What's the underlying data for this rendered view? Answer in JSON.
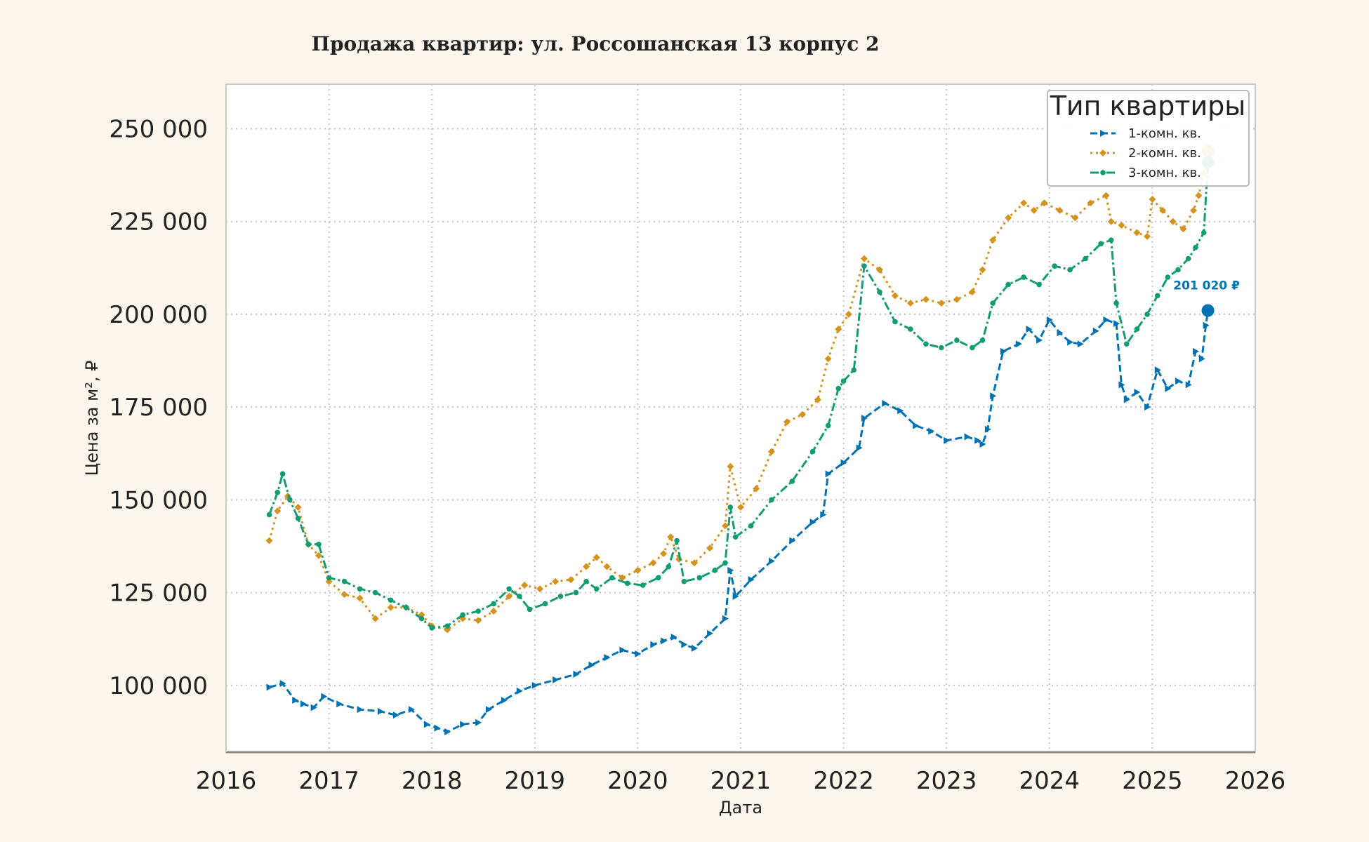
{
  "chart_data": {
    "type": "line",
    "title": "Продажа квартир: ул. Россошанская 13 корпус 2",
    "xlabel": "Дата",
    "ylabel": "Цена за м², ₽",
    "xlim": [
      2016.0,
      2026.0
    ],
    "ylim": [
      82000,
      262000
    ],
    "xticks": [
      2016,
      2017,
      2018,
      2019,
      2020,
      2021,
      2022,
      2023,
      2024,
      2025,
      2026
    ],
    "xtick_labels": [
      "2016",
      "2017",
      "2018",
      "2019",
      "2020",
      "2021",
      "2022",
      "2023",
      "2024",
      "2025",
      "2026"
    ],
    "yticks": [
      100000,
      125000,
      150000,
      175000,
      200000,
      225000,
      250000
    ],
    "ytick_labels": [
      "100 000",
      "125 000",
      "150 000",
      "175 000",
      "200 000",
      "225 000",
      "250 000"
    ],
    "grid": true,
    "legend": {
      "title": "Тип квартиры",
      "placement": "top-right"
    },
    "annotation": {
      "text": "201 020 ₽",
      "x": 2025.54,
      "y": 201020,
      "series": "1-комн. кв."
    },
    "colors": {
      "1-комн. кв.": "#0072b2",
      "2-комн. кв.": "#d4931f",
      "3-комн. кв.": "#119c72"
    },
    "series": [
      {
        "name": "1-комн. кв.",
        "line_style": "dashed",
        "marker": "triangle-right",
        "x": [
          2016.42,
          2016.55,
          2016.67,
          2016.75,
          2016.85,
          2016.95,
          2017.1,
          2017.3,
          2017.5,
          2017.65,
          2017.8,
          2017.95,
          2018.05,
          2018.15,
          2018.3,
          2018.45,
          2018.55,
          2018.7,
          2018.85,
          2019.0,
          2019.2,
          2019.4,
          2019.55,
          2019.7,
          2019.85,
          2020.0,
          2020.15,
          2020.25,
          2020.35,
          2020.45,
          2020.55,
          2020.7,
          2020.85,
          2020.9,
          2020.95,
          2021.1,
          2021.3,
          2021.5,
          2021.7,
          2021.8,
          2021.85,
          2022.0,
          2022.15,
          2022.2,
          2022.4,
          2022.55,
          2022.7,
          2022.85,
          2023.0,
          2023.2,
          2023.3,
          2023.35,
          2023.4,
          2023.45,
          2023.55,
          2023.7,
          2023.8,
          2023.9,
          2024.0,
          2024.1,
          2024.2,
          2024.3,
          2024.45,
          2024.55,
          2024.65,
          2024.7,
          2024.75,
          2024.85,
          2024.95,
          2025.05,
          2025.15,
          2025.25,
          2025.35,
          2025.42,
          2025.48,
          2025.52,
          2025.54
        ],
        "y": [
          99500,
          100500,
          96000,
          95000,
          94000,
          97000,
          95000,
          93500,
          93000,
          92000,
          93500,
          89500,
          88500,
          87500,
          89500,
          90000,
          93500,
          96000,
          98500,
          100000,
          101500,
          103000,
          105500,
          107500,
          109500,
          108500,
          111000,
          112000,
          113000,
          111000,
          110000,
          114000,
          118000,
          131000,
          124000,
          128500,
          133500,
          139000,
          144000,
          146000,
          157000,
          160000,
          164000,
          172000,
          176000,
          174000,
          170000,
          168500,
          166000,
          167000,
          166000,
          165000,
          169000,
          178000,
          190000,
          192000,
          196000,
          193000,
          198500,
          195000,
          192500,
          192000,
          195500,
          198500,
          197500,
          181000,
          177000,
          179000,
          175000,
          185000,
          180000,
          182000,
          181000,
          190000,
          188000,
          197000,
          201020
        ]
      },
      {
        "name": "2-комн. кв.",
        "line_style": "dotted",
        "marker": "diamond",
        "x": [
          2016.42,
          2016.5,
          2016.6,
          2016.7,
          2016.8,
          2016.9,
          2017.0,
          2017.15,
          2017.3,
          2017.45,
          2017.6,
          2017.75,
          2017.9,
          2018.0,
          2018.15,
          2018.3,
          2018.45,
          2018.6,
          2018.75,
          2018.9,
          2019.05,
          2019.2,
          2019.35,
          2019.5,
          2019.6,
          2019.7,
          2019.85,
          2020.0,
          2020.15,
          2020.25,
          2020.32,
          2020.4,
          2020.55,
          2020.7,
          2020.85,
          2020.9,
          2021.0,
          2021.15,
          2021.3,
          2021.45,
          2021.6,
          2021.75,
          2021.85,
          2021.95,
          2022.05,
          2022.2,
          2022.35,
          2022.5,
          2022.65,
          2022.8,
          2022.95,
          2023.1,
          2023.25,
          2023.35,
          2023.45,
          2023.6,
          2023.75,
          2023.85,
          2023.95,
          2024.1,
          2024.25,
          2024.4,
          2024.55,
          2024.6,
          2024.7,
          2024.85,
          2024.95,
          2025.0,
          2025.1,
          2025.2,
          2025.3,
          2025.4,
          2025.45,
          2025.5,
          2025.54
        ],
        "y": [
          139000,
          147000,
          151000,
          148000,
          138000,
          135000,
          128000,
          124500,
          123500,
          118000,
          121000,
          121000,
          119000,
          116000,
          115000,
          118000,
          117500,
          120000,
          124000,
          127000,
          126000,
          128000,
          128500,
          132000,
          134500,
          132000,
          129000,
          131000,
          133000,
          135500,
          140000,
          134000,
          133000,
          137000,
          143000,
          159000,
          148000,
          153000,
          163000,
          171000,
          173000,
          177000,
          188000,
          196000,
          200000,
          215000,
          212000,
          205000,
          203000,
          204000,
          203000,
          204000,
          206000,
          212000,
          220000,
          226000,
          230000,
          228000,
          230000,
          228000,
          226000,
          230000,
          232000,
          225000,
          224000,
          222000,
          221000,
          231000,
          228000,
          225000,
          223000,
          228000,
          232000,
          238000,
          244000
        ]
      },
      {
        "name": "3-комн. кв.",
        "line_style": "dashdot",
        "marker": "circle",
        "x": [
          2016.42,
          2016.5,
          2016.55,
          2016.62,
          2016.7,
          2016.8,
          2016.9,
          2017.0,
          2017.15,
          2017.3,
          2017.45,
          2017.6,
          2017.75,
          2017.9,
          2018.0,
          2018.15,
          2018.3,
          2018.45,
          2018.6,
          2018.75,
          2018.85,
          2018.95,
          2019.1,
          2019.25,
          2019.4,
          2019.5,
          2019.6,
          2019.75,
          2019.9,
          2020.05,
          2020.2,
          2020.3,
          2020.38,
          2020.45,
          2020.6,
          2020.75,
          2020.85,
          2020.9,
          2020.95,
          2021.1,
          2021.3,
          2021.5,
          2021.7,
          2021.85,
          2021.95,
          2022.0,
          2022.1,
          2022.2,
          2022.35,
          2022.5,
          2022.65,
          2022.8,
          2022.95,
          2023.1,
          2023.25,
          2023.35,
          2023.45,
          2023.6,
          2023.75,
          2023.9,
          2024.05,
          2024.2,
          2024.35,
          2024.5,
          2024.6,
          2024.65,
          2024.75,
          2024.85,
          2024.95,
          2025.05,
          2025.15,
          2025.25,
          2025.35,
          2025.42,
          2025.5,
          2025.54
        ],
        "y": [
          146000,
          152000,
          157000,
          150000,
          145000,
          138000,
          138000,
          129000,
          128000,
          126000,
          125000,
          123000,
          121000,
          118000,
          115500,
          116000,
          119000,
          120000,
          122000,
          126000,
          124000,
          120500,
          122000,
          124000,
          125000,
          128000,
          126000,
          129000,
          127500,
          127000,
          129000,
          132000,
          139000,
          128000,
          129000,
          131000,
          133000,
          148000,
          140000,
          143000,
          150000,
          155000,
          163000,
          170000,
          180000,
          182000,
          185000,
          213000,
          206000,
          198000,
          196000,
          192000,
          191000,
          193000,
          191000,
          193000,
          203000,
          208000,
          210000,
          208000,
          213000,
          212000,
          215000,
          219000,
          220000,
          203000,
          192000,
          196000,
          200000,
          205000,
          210000,
          212000,
          215000,
          218000,
          222000,
          241000
        ]
      }
    ]
  }
}
